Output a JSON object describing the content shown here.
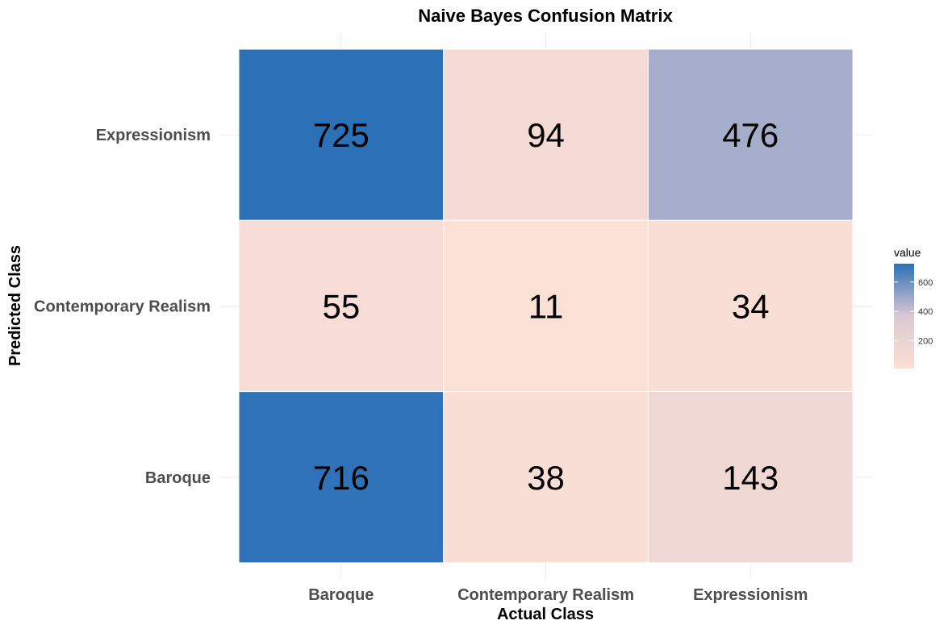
{
  "chart_data": {
    "type": "heatmap",
    "title": "Naive Bayes Confusion Matrix",
    "xlabel": "Actual Class",
    "ylabel": "Predicted Class",
    "x_categories": [
      "Baroque",
      "Contemporary Realism",
      "Expressionism"
    ],
    "y_categories": [
      "Baroque",
      "Contemporary Realism",
      "Expressionism"
    ],
    "cells": [
      {
        "actual": "Baroque",
        "predicted": "Expressionism",
        "value": 725
      },
      {
        "actual": "Contemporary Realism",
        "predicted": "Expressionism",
        "value": 94
      },
      {
        "actual": "Expressionism",
        "predicted": "Expressionism",
        "value": 476
      },
      {
        "actual": "Baroque",
        "predicted": "Contemporary Realism",
        "value": 55
      },
      {
        "actual": "Contemporary Realism",
        "predicted": "Contemporary Realism",
        "value": 11
      },
      {
        "actual": "Expressionism",
        "predicted": "Contemporary Realism",
        "value": 34
      },
      {
        "actual": "Baroque",
        "predicted": "Baroque",
        "value": 716
      },
      {
        "actual": "Contemporary Realism",
        "predicted": "Baroque",
        "value": 38
      },
      {
        "actual": "Expressionism",
        "predicted": "Baroque",
        "value": 143
      }
    ],
    "legend": {
      "title": "value",
      "ticks": [
        200,
        400,
        600
      ],
      "range": [
        11,
        725
      ],
      "colors": {
        "low": "#fbe0d5",
        "mid": "#dbc8d2",
        "high": "#2c70b6"
      },
      "placement": "right"
    },
    "grid": true
  }
}
